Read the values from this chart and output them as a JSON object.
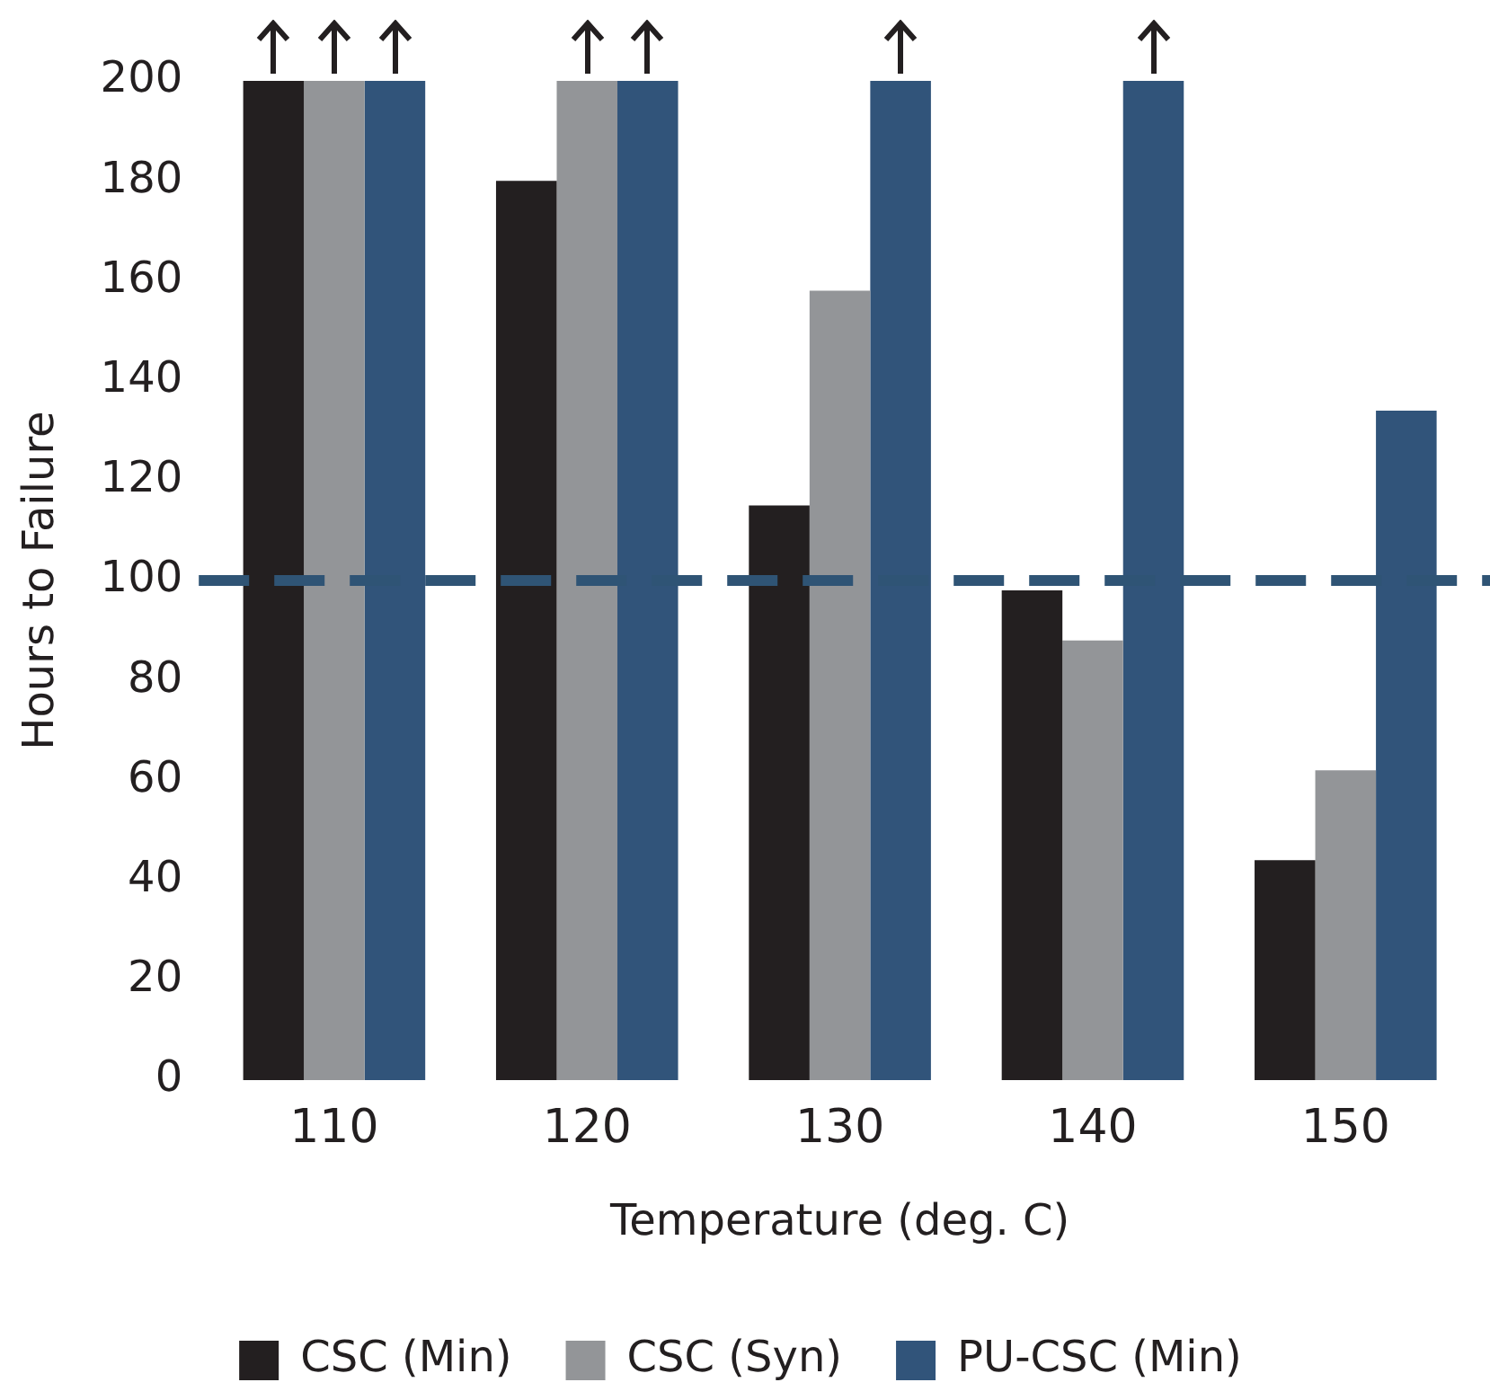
{
  "chart_data": {
    "type": "bar",
    "xlabel": "Temperature (deg. C)",
    "ylabel": "Hours to Failure",
    "categories": [
      "110",
      "120",
      "130",
      "140",
      "150"
    ],
    "series": [
      {
        "name": "CSC (Min)",
        "color": "#231f20",
        "values": [
          200,
          180,
          115,
          98,
          44
        ]
      },
      {
        "name": "CSC (Syn)",
        "color": "#939598",
        "values": [
          200,
          200,
          158,
          88,
          62
        ]
      },
      {
        "name": "PU-CSC (Min)",
        "color": "#31547a",
        "values": [
          200,
          200,
          200,
          200,
          134
        ]
      }
    ],
    "ylim": [
      0,
      200
    ],
    "yticks": [
      0,
      20,
      40,
      60,
      80,
      100,
      120,
      140,
      160,
      180,
      200
    ],
    "ref_lines": [
      {
        "axis": "y",
        "value": 100,
        "color": "#2f5475",
        "line_style": "dashed"
      }
    ],
    "grid": false,
    "legend": "bottom"
  }
}
